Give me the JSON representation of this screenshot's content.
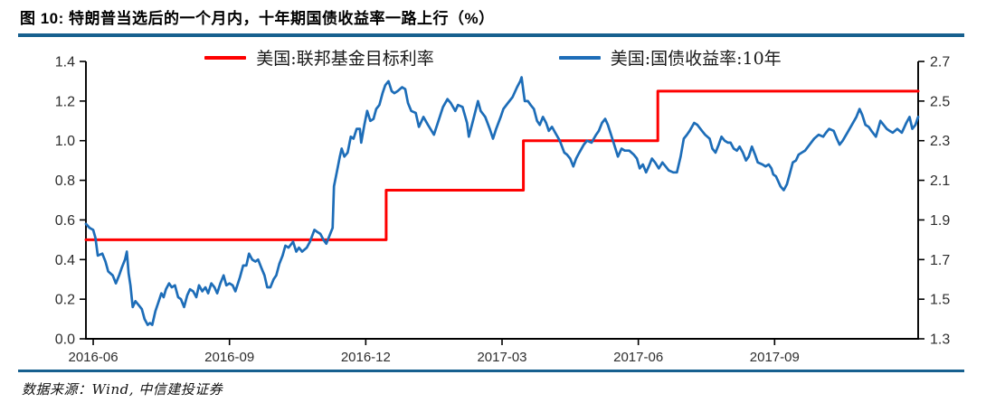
{
  "header": {
    "title": "图 10: 特朗普当选后的一个月内，十年期国债收益率一路上行（%）"
  },
  "footer": {
    "source": "数据来源：Wind, 中信建投证券"
  },
  "colors": {
    "accent_rule": "#17608f",
    "fed_funds_line": "#fe0000",
    "treasury_line": "#1d6db8",
    "axis": "#000000",
    "tick_text": "#2d2d2d"
  },
  "chart_data": {
    "type": "line",
    "title": "图 10: 特朗普当选后的一个月内，十年期国债收益率一路上行（%）",
    "legend_position": "top",
    "grid": false,
    "x_axis": {
      "unit": "months since 2016-06",
      "domain": [
        -0.16,
        18.16
      ],
      "ticks": [
        {
          "pos": 0,
          "label": "2016-06"
        },
        {
          "pos": 3,
          "label": "2016-09"
        },
        {
          "pos": 6,
          "label": "2016-12"
        },
        {
          "pos": 9,
          "label": "2017-03"
        },
        {
          "pos": 12,
          "label": "2017-06"
        },
        {
          "pos": 15,
          "label": "2017-09"
        }
      ]
    },
    "left_axis": {
      "min": 0.0,
      "max": 1.4,
      "ticks": [
        {
          "v": 1.4,
          "label": "1.4"
        },
        {
          "v": 1.2,
          "label": "1.2"
        },
        {
          "v": 1.0,
          "label": "1.0"
        },
        {
          "v": 0.8,
          "label": "0.8"
        },
        {
          "v": 0.6,
          "label": "0.6"
        },
        {
          "v": 0.4,
          "label": "0.4"
        },
        {
          "v": 0.2,
          "label": "0.2"
        },
        {
          "v": 0.0,
          "label": "0.0"
        }
      ]
    },
    "right_axis": {
      "min": 1.3,
      "max": 2.7,
      "ticks": [
        {
          "v": 2.7,
          "label": "2.7"
        },
        {
          "v": 2.5,
          "label": "2.5"
        },
        {
          "v": 2.3,
          "label": "2.3"
        },
        {
          "v": 2.1,
          "label": "2.1"
        },
        {
          "v": 1.9,
          "label": "1.9"
        },
        {
          "v": 1.7,
          "label": "1.7"
        },
        {
          "v": 1.5,
          "label": "1.5"
        },
        {
          "v": 1.3,
          "label": "1.3"
        }
      ]
    },
    "series": [
      {
        "name": "美国:联邦基金目标利率",
        "color": "#fe0000",
        "axis": "left",
        "shape": "step",
        "width": 3,
        "points": [
          [
            -0.16,
            0.5
          ],
          [
            6.45,
            0.5
          ],
          [
            6.45,
            0.75
          ],
          [
            9.47,
            0.75
          ],
          [
            9.47,
            1.0
          ],
          [
            12.43,
            1.0
          ],
          [
            12.43,
            1.25
          ],
          [
            18.16,
            1.25
          ]
        ]
      },
      {
        "name": "美国:国债收益率:10年",
        "color": "#1d6db8",
        "axis": "right",
        "shape": "line",
        "width": 2.7,
        "points": [
          [
            -0.16,
            1.88
          ],
          [
            -0.08,
            1.86
          ],
          [
            0.0,
            1.85
          ],
          [
            0.05,
            1.81
          ],
          [
            0.1,
            1.72
          ],
          [
            0.2,
            1.73
          ],
          [
            0.27,
            1.69
          ],
          [
            0.33,
            1.64
          ],
          [
            0.43,
            1.62
          ],
          [
            0.5,
            1.58
          ],
          [
            0.57,
            1.62
          ],
          [
            0.63,
            1.66
          ],
          [
            0.7,
            1.7
          ],
          [
            0.74,
            1.74
          ],
          [
            0.78,
            1.63
          ],
          [
            0.82,
            1.57
          ],
          [
            0.87,
            1.46
          ],
          [
            0.93,
            1.49
          ],
          [
            1.0,
            1.47
          ],
          [
            1.07,
            1.45
          ],
          [
            1.13,
            1.4
          ],
          [
            1.2,
            1.37
          ],
          [
            1.25,
            1.38
          ],
          [
            1.3,
            1.37
          ],
          [
            1.37,
            1.44
          ],
          [
            1.43,
            1.48
          ],
          [
            1.5,
            1.53
          ],
          [
            1.55,
            1.51
          ],
          [
            1.6,
            1.55
          ],
          [
            1.67,
            1.58
          ],
          [
            1.73,
            1.56
          ],
          [
            1.8,
            1.57
          ],
          [
            1.87,
            1.51
          ],
          [
            1.93,
            1.5
          ],
          [
            2.0,
            1.46
          ],
          [
            2.07,
            1.52
          ],
          [
            2.13,
            1.55
          ],
          [
            2.2,
            1.54
          ],
          [
            2.27,
            1.51
          ],
          [
            2.33,
            1.57
          ],
          [
            2.4,
            1.54
          ],
          [
            2.47,
            1.56
          ],
          [
            2.53,
            1.53
          ],
          [
            2.6,
            1.58
          ],
          [
            2.67,
            1.56
          ],
          [
            2.73,
            1.53
          ],
          [
            2.8,
            1.58
          ],
          [
            2.87,
            1.62
          ],
          [
            2.93,
            1.57
          ],
          [
            3.0,
            1.58
          ],
          [
            3.07,
            1.57
          ],
          [
            3.13,
            1.54
          ],
          [
            3.23,
            1.61
          ],
          [
            3.3,
            1.67
          ],
          [
            3.37,
            1.67
          ],
          [
            3.43,
            1.73
          ],
          [
            3.5,
            1.7
          ],
          [
            3.57,
            1.69
          ],
          [
            3.63,
            1.7
          ],
          [
            3.7,
            1.66
          ],
          [
            3.77,
            1.62
          ],
          [
            3.83,
            1.56
          ],
          [
            3.9,
            1.56
          ],
          [
            3.97,
            1.6
          ],
          [
            4.03,
            1.62
          ],
          [
            4.1,
            1.68
          ],
          [
            4.17,
            1.72
          ],
          [
            4.23,
            1.77
          ],
          [
            4.3,
            1.76
          ],
          [
            4.4,
            1.79
          ],
          [
            4.47,
            1.74
          ],
          [
            4.53,
            1.76
          ],
          [
            4.6,
            1.74
          ],
          [
            4.7,
            1.76
          ],
          [
            4.77,
            1.79
          ],
          [
            4.87,
            1.85
          ],
          [
            4.93,
            1.84
          ],
          [
            5.0,
            1.83
          ],
          [
            5.07,
            1.8
          ],
          [
            5.13,
            1.78
          ],
          [
            5.2,
            1.82
          ],
          [
            5.27,
            1.86
          ],
          [
            5.3,
            2.07
          ],
          [
            5.37,
            2.15
          ],
          [
            5.43,
            2.22
          ],
          [
            5.47,
            2.26
          ],
          [
            5.53,
            2.22
          ],
          [
            5.6,
            2.24
          ],
          [
            5.67,
            2.32
          ],
          [
            5.73,
            2.31
          ],
          [
            5.8,
            2.36
          ],
          [
            5.87,
            2.36
          ],
          [
            5.9,
            2.29
          ],
          [
            5.97,
            2.38
          ],
          [
            6.03,
            2.45
          ],
          [
            6.1,
            2.4
          ],
          [
            6.17,
            2.41
          ],
          [
            6.23,
            2.46
          ],
          [
            6.3,
            2.48
          ],
          [
            6.37,
            2.54
          ],
          [
            6.43,
            2.58
          ],
          [
            6.5,
            2.6
          ],
          [
            6.57,
            2.55
          ],
          [
            6.63,
            2.54
          ],
          [
            6.7,
            2.55
          ],
          [
            6.8,
            2.57
          ],
          [
            6.87,
            2.56
          ],
          [
            6.93,
            2.49
          ],
          [
            7.0,
            2.45
          ],
          [
            7.1,
            2.44
          ],
          [
            7.17,
            2.37
          ],
          [
            7.27,
            2.42
          ],
          [
            7.37,
            2.38
          ],
          [
            7.5,
            2.33
          ],
          [
            7.6,
            2.4
          ],
          [
            7.7,
            2.47
          ],
          [
            7.8,
            2.51
          ],
          [
            7.87,
            2.49
          ],
          [
            7.97,
            2.45
          ],
          [
            8.03,
            2.48
          ],
          [
            8.13,
            2.47
          ],
          [
            8.23,
            2.39
          ],
          [
            8.27,
            2.32
          ],
          [
            8.37,
            2.41
          ],
          [
            8.47,
            2.5
          ],
          [
            8.53,
            2.45
          ],
          [
            8.63,
            2.42
          ],
          [
            8.73,
            2.36
          ],
          [
            8.8,
            2.31
          ],
          [
            8.87,
            2.36
          ],
          [
            8.97,
            2.42
          ],
          [
            9.03,
            2.46
          ],
          [
            9.13,
            2.49
          ],
          [
            9.23,
            2.52
          ],
          [
            9.33,
            2.57
          ],
          [
            9.4,
            2.6
          ],
          [
            9.43,
            2.62
          ],
          [
            9.47,
            2.55
          ],
          [
            9.5,
            2.5
          ],
          [
            9.57,
            2.5
          ],
          [
            9.63,
            2.48
          ],
          [
            9.7,
            2.46
          ],
          [
            9.77,
            2.4
          ],
          [
            9.83,
            2.38
          ],
          [
            9.9,
            2.42
          ],
          [
            9.97,
            2.39
          ],
          [
            10.03,
            2.35
          ],
          [
            10.1,
            2.37
          ],
          [
            10.17,
            2.34
          ],
          [
            10.27,
            2.3
          ],
          [
            10.37,
            2.24
          ],
          [
            10.43,
            2.23
          ],
          [
            10.5,
            2.21
          ],
          [
            10.57,
            2.17
          ],
          [
            10.63,
            2.21
          ],
          [
            10.7,
            2.24
          ],
          [
            10.8,
            2.28
          ],
          [
            10.87,
            2.3
          ],
          [
            10.97,
            2.29
          ],
          [
            11.07,
            2.33
          ],
          [
            11.13,
            2.35
          ],
          [
            11.2,
            2.39
          ],
          [
            11.27,
            2.41
          ],
          [
            11.33,
            2.38
          ],
          [
            11.4,
            2.33
          ],
          [
            11.47,
            2.28
          ],
          [
            11.55,
            2.22
          ],
          [
            11.63,
            2.26
          ],
          [
            11.7,
            2.25
          ],
          [
            11.8,
            2.25
          ],
          [
            11.9,
            2.23
          ],
          [
            11.97,
            2.21
          ],
          [
            12.03,
            2.16
          ],
          [
            12.1,
            2.18
          ],
          [
            12.17,
            2.14
          ],
          [
            12.23,
            2.17
          ],
          [
            12.3,
            2.21
          ],
          [
            12.37,
            2.19
          ],
          [
            12.45,
            2.16
          ],
          [
            12.53,
            2.19
          ],
          [
            12.6,
            2.17
          ],
          [
            12.67,
            2.15
          ],
          [
            12.77,
            2.14
          ],
          [
            12.85,
            2.14
          ],
          [
            12.93,
            2.22
          ],
          [
            13.0,
            2.31
          ],
          [
            13.07,
            2.33
          ],
          [
            13.13,
            2.35
          ],
          [
            13.23,
            2.39
          ],
          [
            13.3,
            2.38
          ],
          [
            13.4,
            2.35
          ],
          [
            13.47,
            2.33
          ],
          [
            13.57,
            2.31
          ],
          [
            13.63,
            2.26
          ],
          [
            13.7,
            2.24
          ],
          [
            13.77,
            2.28
          ],
          [
            13.83,
            2.32
          ],
          [
            13.9,
            2.3
          ],
          [
            13.97,
            2.29
          ],
          [
            14.03,
            2.29
          ],
          [
            14.1,
            2.26
          ],
          [
            14.17,
            2.25
          ],
          [
            14.23,
            2.27
          ],
          [
            14.3,
            2.24
          ],
          [
            14.37,
            2.2
          ],
          [
            14.43,
            2.22
          ],
          [
            14.5,
            2.27
          ],
          [
            14.57,
            2.23
          ],
          [
            14.63,
            2.19
          ],
          [
            14.73,
            2.18
          ],
          [
            14.8,
            2.17
          ],
          [
            14.87,
            2.18
          ],
          [
            14.93,
            2.16
          ],
          [
            14.97,
            2.13
          ],
          [
            15.03,
            2.12
          ],
          [
            15.13,
            2.07
          ],
          [
            15.2,
            2.05
          ],
          [
            15.27,
            2.08
          ],
          [
            15.33,
            2.13
          ],
          [
            15.4,
            2.19
          ],
          [
            15.47,
            2.2
          ],
          [
            15.53,
            2.23
          ],
          [
            15.6,
            2.24
          ],
          [
            15.67,
            2.25
          ],
          [
            15.77,
            2.28
          ],
          [
            15.87,
            2.31
          ],
          [
            15.97,
            2.33
          ],
          [
            16.07,
            2.32
          ],
          [
            16.13,
            2.34
          ],
          [
            16.2,
            2.36
          ],
          [
            16.3,
            2.35
          ],
          [
            16.37,
            2.31
          ],
          [
            16.43,
            2.28
          ],
          [
            16.5,
            2.3
          ],
          [
            16.6,
            2.34
          ],
          [
            16.7,
            2.38
          ],
          [
            16.8,
            2.42
          ],
          [
            16.87,
            2.46
          ],
          [
            16.93,
            2.43
          ],
          [
            17.0,
            2.38
          ],
          [
            17.07,
            2.37
          ],
          [
            17.13,
            2.35
          ],
          [
            17.23,
            2.32
          ],
          [
            17.33,
            2.4
          ],
          [
            17.4,
            2.38
          ],
          [
            17.47,
            2.36
          ],
          [
            17.53,
            2.35
          ],
          [
            17.6,
            2.34
          ],
          [
            17.7,
            2.36
          ],
          [
            17.8,
            2.34
          ],
          [
            17.9,
            2.39
          ],
          [
            17.97,
            2.42
          ],
          [
            18.03,
            2.36
          ],
          [
            18.1,
            2.38
          ],
          [
            18.16,
            2.42
          ]
        ]
      }
    ]
  }
}
